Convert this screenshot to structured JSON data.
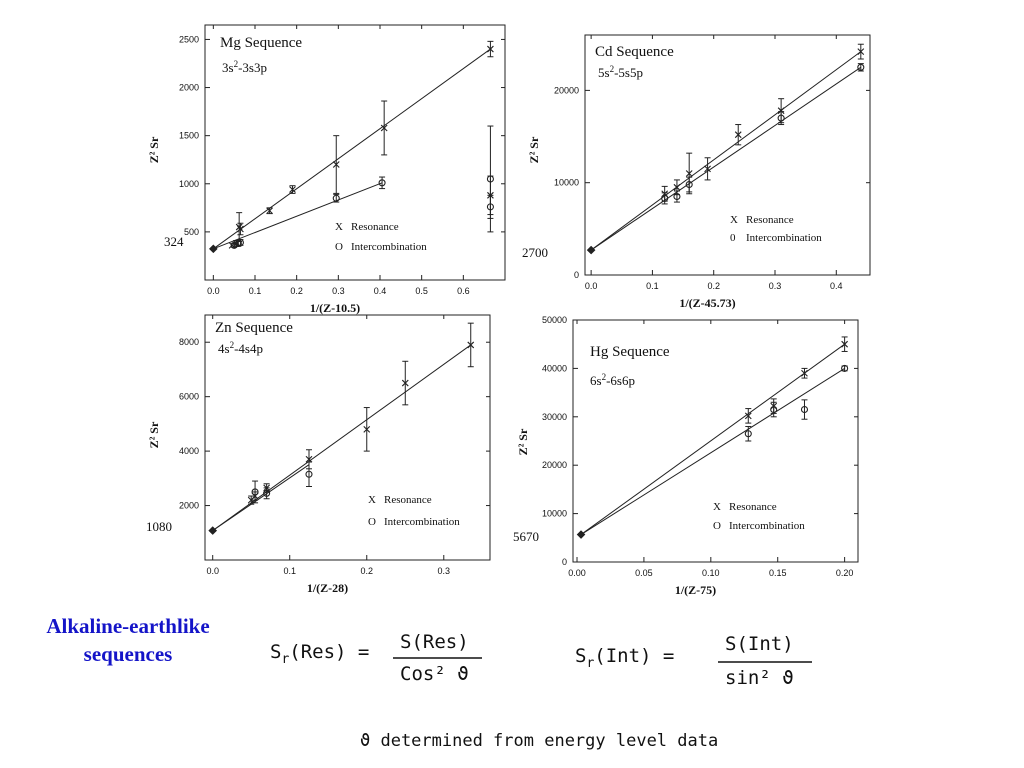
{
  "heading": {
    "line1": "Alkaline-earthlike",
    "line2": "sequences"
  },
  "formulas": {
    "res": {
      "lhs": "S",
      "lhs_sub": "r",
      "lhs_arg": "(Res) =",
      "num": "S(Res)",
      "den": "Cos² ϑ"
    },
    "int": {
      "lhs": "S",
      "lhs_sub": "r",
      "lhs_arg": "(Int) =",
      "num": "S(Int)",
      "den": "sin² ϑ"
    },
    "note": "ϑ determined from energy level data"
  },
  "chart_data": [
    {
      "id": "mg",
      "type": "scatter",
      "title": "Mg Sequence",
      "subtitle_base": "3s",
      "subtitle_sup": "2",
      "subtitle_rest": "-3s3p",
      "xlabel": "1/(Z-10.5)",
      "ylabel": "Z² Sr",
      "xlim": [
        -0.02,
        0.7
      ],
      "ylim": [
        0,
        2650
      ],
      "xticks": [
        0.0,
        0.1,
        0.2,
        0.3,
        0.4,
        0.5,
        0.6
      ],
      "xtick_labels": [
        "0.0",
        "0.1",
        "0.2",
        "0.3",
        "0.4",
        "0.5",
        "0.6"
      ],
      "yticks": [
        500,
        1000,
        1500,
        2000,
        2500
      ],
      "ytick_labels": [
        "500",
        "1000",
        "1500",
        "2000",
        "2500"
      ],
      "intercept_label": "324",
      "legend": [
        {
          "marker": "X",
          "label": "Resonance"
        },
        {
          "marker": "O",
          "label": "Intercombination"
        }
      ],
      "series": [
        {
          "name": "Resonance",
          "marker": "x",
          "points": [
            [
              0.0,
              324,
              0
            ],
            [
              0.045,
              360,
              0
            ],
            [
              0.055,
              380,
              30
            ],
            [
              0.062,
              550,
              150
            ],
            [
              0.065,
              530,
              60
            ],
            [
              0.135,
              720,
              30
            ],
            [
              0.19,
              940,
              40
            ],
            [
              0.295,
              1200,
              300
            ],
            [
              0.41,
              1580,
              280
            ],
            [
              0.665,
              2400,
              80
            ],
            [
              0.665,
              880,
              200
            ]
          ],
          "fit": [
            [
              0.0,
              324
            ],
            [
              0.665,
              2400
            ]
          ]
        },
        {
          "name": "Intercombination",
          "marker": "o",
          "points": [
            [
              0.0,
              324,
              0
            ],
            [
              0.05,
              360,
              20
            ],
            [
              0.06,
              380,
              30
            ],
            [
              0.065,
              390,
              30
            ],
            [
              0.295,
              850,
              40
            ],
            [
              0.405,
              1010,
              60
            ],
            [
              0.665,
              1050,
              550
            ],
            [
              0.665,
              760,
              120
            ]
          ],
          "fit": [
            [
              0.0,
              324
            ],
            [
              0.405,
              1010
            ]
          ]
        }
      ]
    },
    {
      "id": "cd",
      "type": "scatter",
      "title": "Cd Sequence",
      "subtitle_base": "5s",
      "subtitle_sup": "2",
      "subtitle_rest": "-5s5p",
      "xlabel": "1/(Z-45.73)",
      "ylabel": "Z² Sr",
      "xlim": [
        -0.01,
        0.455
      ],
      "ylim": [
        0,
        26000
      ],
      "xticks": [
        0.0,
        0.1,
        0.2,
        0.3,
        0.4
      ],
      "xtick_labels": [
        "0.0",
        "0.1",
        "0.2",
        "0.3",
        "0.4"
      ],
      "yticks": [
        0,
        10000,
        20000
      ],
      "ytick_labels": [
        "0",
        "10000",
        "20000"
      ],
      "intercept_label": "2700",
      "legend": [
        {
          "marker": "X",
          "label": "Resonance"
        },
        {
          "marker": "0",
          "label": "Intercombination"
        }
      ],
      "series": [
        {
          "name": "Resonance",
          "marker": "x",
          "points": [
            [
              0.0,
              2700,
              0
            ],
            [
              0.12,
              8800,
              800
            ],
            [
              0.14,
              9500,
              800
            ],
            [
              0.16,
              11000,
              2200
            ],
            [
              0.19,
              11500,
              1200
            ],
            [
              0.24,
              15200,
              1100
            ],
            [
              0.31,
              17800,
              1300
            ],
            [
              0.44,
              24200,
              800
            ]
          ],
          "fit": [
            [
              0.0,
              2700
            ],
            [
              0.44,
              24200
            ]
          ]
        },
        {
          "name": "Intercombination",
          "marker": "o",
          "points": [
            [
              0.0,
              2700,
              0
            ],
            [
              0.12,
              8300,
              600
            ],
            [
              0.14,
              8500,
              600
            ],
            [
              0.16,
              9800,
              800
            ],
            [
              0.31,
              17000,
              700
            ],
            [
              0.44,
              22500,
              400
            ]
          ],
          "fit": [
            [
              0.0,
              2700
            ],
            [
              0.44,
              22500
            ]
          ]
        }
      ]
    },
    {
      "id": "zn",
      "type": "scatter",
      "title": "Zn Sequence",
      "subtitle_base": "4s",
      "subtitle_sup": "2",
      "subtitle_rest": "-4s4p",
      "xlabel": "1/(Z-28)",
      "ylabel": "Z² Sr",
      "xlim": [
        -0.01,
        0.36
      ],
      "ylim": [
        0,
        9000
      ],
      "xticks": [
        0.0,
        0.1,
        0.2,
        0.3
      ],
      "xtick_labels": [
        "0.0",
        "0.1",
        "0.2",
        "0.3"
      ],
      "yticks": [
        2000,
        4000,
        6000,
        8000
      ],
      "ytick_labels": [
        "2000",
        "4000",
        "6000",
        "8000"
      ],
      "intercept_label": "1080",
      "legend": [
        {
          "marker": "X",
          "label": "Resonance"
        },
        {
          "marker": "O",
          "label": "Intercombination"
        }
      ],
      "series": [
        {
          "name": "Resonance",
          "marker": "x",
          "points": [
            [
              0.0,
              1080,
              0
            ],
            [
              0.05,
              2200,
              150
            ],
            [
              0.055,
              2350,
              150
            ],
            [
              0.07,
              2650,
              150
            ],
            [
              0.125,
              3700,
              350
            ],
            [
              0.2,
              4800,
              800
            ],
            [
              0.25,
              6500,
              800
            ],
            [
              0.335,
              7900,
              800
            ]
          ],
          "fit": [
            [
              0.0,
              1080
            ],
            [
              0.335,
              7900
            ]
          ]
        },
        {
          "name": "Intercombination",
          "marker": "o",
          "points": [
            [
              0.0,
              1080,
              0
            ],
            [
              0.055,
              2500,
              400
            ],
            [
              0.07,
              2450,
              200
            ],
            [
              0.125,
              3150,
              450
            ]
          ],
          "fit": [
            [
              0.0,
              1080
            ],
            [
              0.125,
              3500
            ]
          ]
        }
      ]
    },
    {
      "id": "hg",
      "type": "scatter",
      "title": "Hg Sequence",
      "subtitle_base": "6s",
      "subtitle_sup": "2",
      "subtitle_rest": "-6s6p",
      "xlabel": "1/(Z-75)",
      "ylabel": "Z² Sr",
      "xlim": [
        -0.003,
        0.21
      ],
      "ylim": [
        0,
        50000
      ],
      "xticks": [
        0.0,
        0.05,
        0.1,
        0.15,
        0.2
      ],
      "xtick_labels": [
        "0.00",
        "0.05",
        "0.10",
        "0.15",
        "0.20"
      ],
      "yticks": [
        0,
        10000,
        20000,
        30000,
        40000,
        50000
      ],
      "ytick_labels": [
        "0",
        "10000",
        "20000",
        "30000",
        "40000",
        "50000"
      ],
      "intercept_label": "5670",
      "legend": [
        {
          "marker": "X",
          "label": "Resonance"
        },
        {
          "marker": "O",
          "label": "Intercombination"
        }
      ],
      "series": [
        {
          "name": "Resonance",
          "marker": "x",
          "points": [
            [
              0.003,
              5670,
              0
            ],
            [
              0.128,
              30200,
              1500
            ],
            [
              0.147,
              32200,
              1500
            ],
            [
              0.17,
              39000,
              1000
            ],
            [
              0.2,
              45000,
              1500
            ]
          ],
          "fit": [
            [
              0.003,
              5670
            ],
            [
              0.2,
              45000
            ]
          ]
        },
        {
          "name": "Intercombination",
          "marker": "o",
          "points": [
            [
              0.003,
              5670,
              0
            ],
            [
              0.128,
              26500,
              1500
            ],
            [
              0.147,
              31500,
              1500
            ],
            [
              0.17,
              31500,
              2000
            ],
            [
              0.2,
              40000,
              500
            ]
          ],
          "fit": [
            [
              0.003,
              5670
            ],
            [
              0.2,
              40000
            ]
          ]
        }
      ]
    }
  ]
}
